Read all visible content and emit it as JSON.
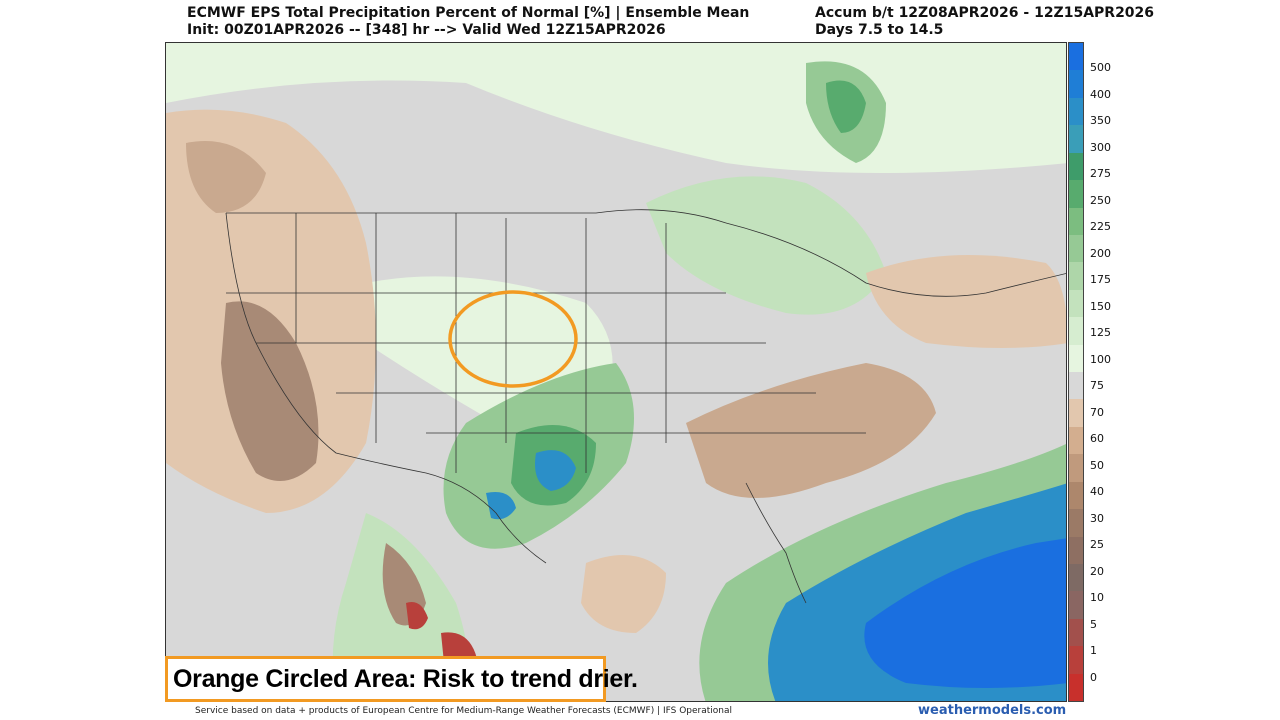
{
  "header": {
    "title_line1": "ECMWF EPS Total Precipitation Percent of Normal [%] | Ensemble Mean",
    "title_line2": "Init: 00Z01APR2026 -- [348] hr --> Valid Wed 12Z15APR2026",
    "accum_line1": "Accum b/t 12Z08APR2026 - 12Z15APR2026",
    "accum_line2": "Days 7.5 to 14.5"
  },
  "colorbar": {
    "labels": [
      "500",
      "400",
      "350",
      "300",
      "275",
      "250",
      "225",
      "200",
      "175",
      "150",
      "125",
      "100",
      "75",
      "70",
      "60",
      "50",
      "40",
      "30",
      "25",
      "20",
      "10",
      "5",
      "1",
      "0"
    ],
    "colors": [
      "#1a6fe0",
      "#1f7ed6",
      "#2b8fc8",
      "#3a9eb8",
      "#3e9c6a",
      "#58ab6e",
      "#7cbd80",
      "#96c995",
      "#aed6a9",
      "#c3e2bd",
      "#d6edd0",
      "#e6f5e0",
      "#d8d8d8",
      "#e2c7ae",
      "#d3ae8f",
      "#c09a7d",
      "#ad876c",
      "#9b7a66",
      "#8e6f62",
      "#7e6a64",
      "#8a6662",
      "#a2504c",
      "#b8403b",
      "#c8302c"
    ]
  },
  "callout": {
    "text": "Orange Circled Area: Risk to trend drier."
  },
  "footer": {
    "left": "Service based on data + products of European Centre for Medium-Range Weather Forecasts (ECMWF) | IFS Operational",
    "right": "weathermodels.com"
  },
  "map": {
    "highlight_color": "#f29a22",
    "land_color": "#d8d8d8",
    "wet_colors": [
      "#e6f5e0",
      "#c3e2bd",
      "#96c995",
      "#58ab6e",
      "#2b8fc8",
      "#1a6fe0"
    ],
    "dry_colors": [
      "#e2c7ae",
      "#c9a98f",
      "#a88a76",
      "#b8403b"
    ]
  }
}
